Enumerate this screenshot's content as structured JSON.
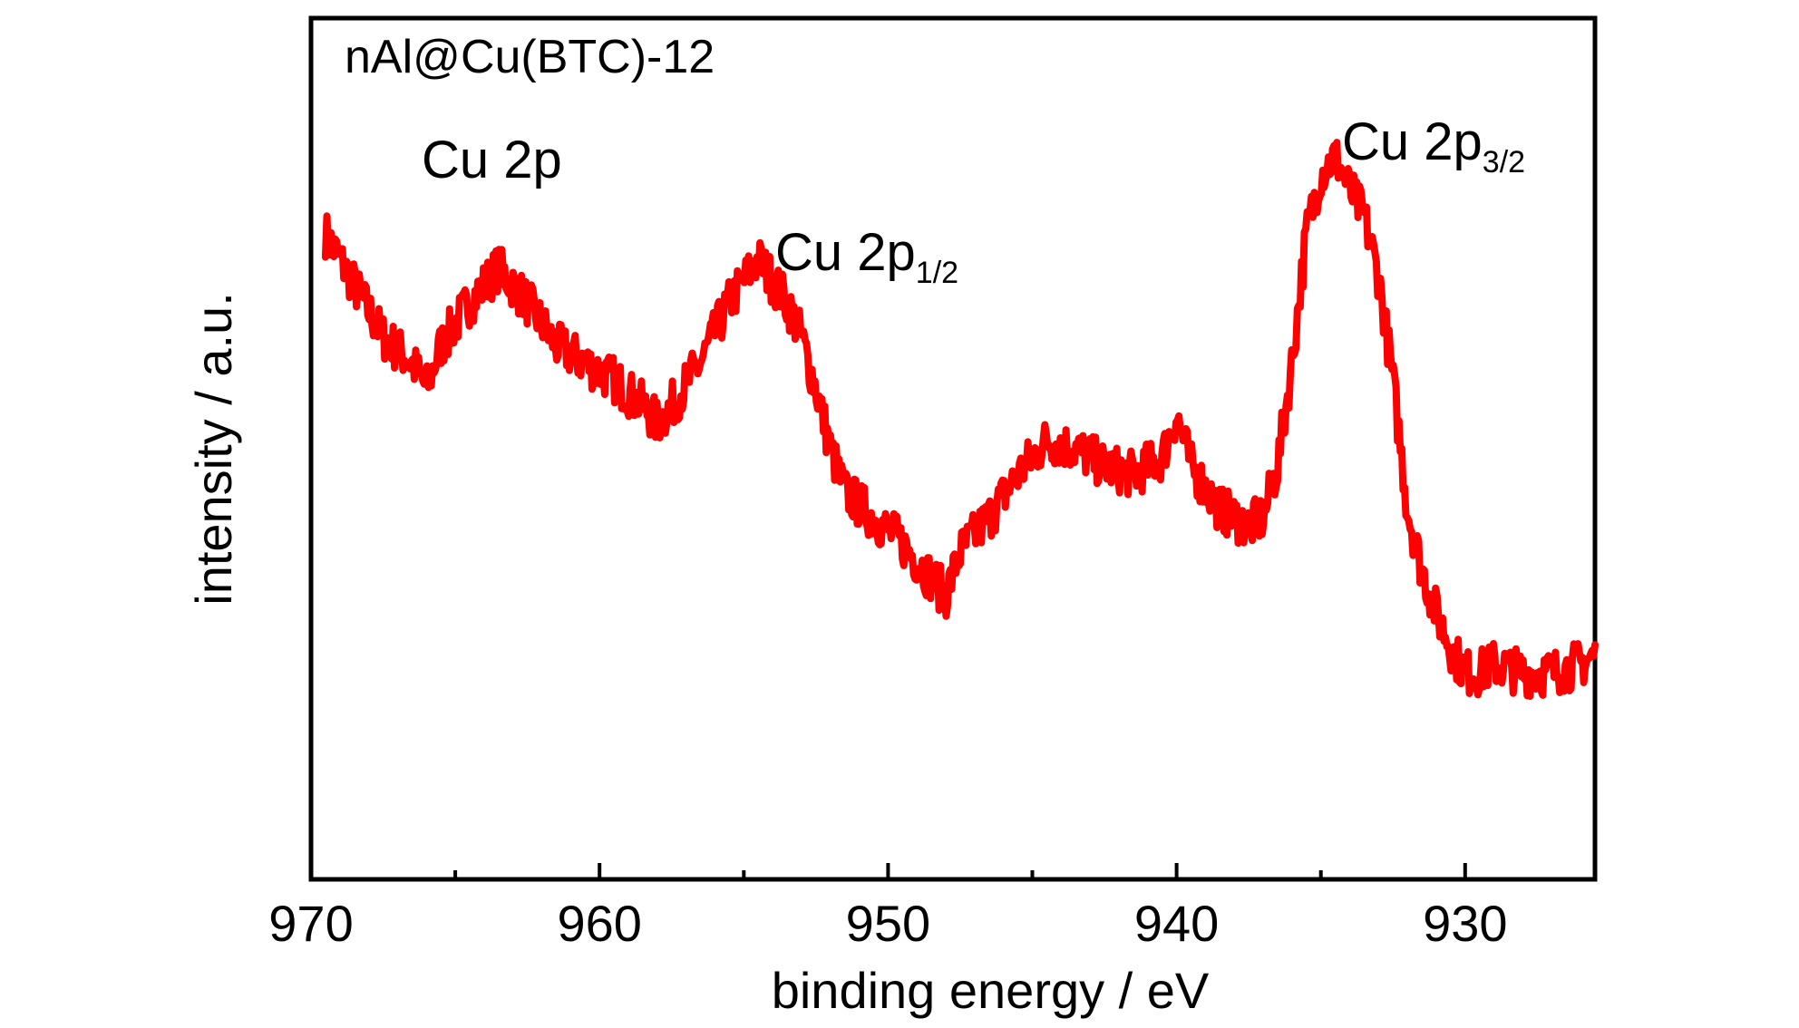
{
  "chart_data": {
    "type": "line",
    "title": "nAl@Cu(BTC)-12",
    "xlabel": "binding energy / eV",
    "ylabel": "intensity / a.u.",
    "xlim": [
      970,
      925.5
    ],
    "x_reversed": true,
    "ylim": [
      0,
      100
    ],
    "y_ticks_shown": false,
    "grid": false,
    "legend": "none",
    "x_ticks": [
      970,
      960,
      950,
      940,
      930
    ],
    "x_tick_labels": [
      "970",
      "960",
      "950",
      "940",
      "930"
    ],
    "x_minor_ticks": [
      965,
      955,
      945,
      935
    ],
    "annotations": {
      "region": "Cu 2p",
      "peak_half": {
        "base": "Cu 2p",
        "sub": "1/2",
        "x": 954.5,
        "y": 74
      },
      "peak_threehalf": {
        "base": "Cu 2p",
        "sub": "3/2",
        "x": 934.6,
        "y": 84
      }
    },
    "series": [
      {
        "color": "#ff0000",
        "x": [
          969.5,
          968.5,
          967.5,
          966.5,
          966.0,
          965.5,
          964.5,
          963.5,
          962.5,
          961.5,
          960.5,
          959.5,
          958.5,
          958.0,
          957.5,
          956.5,
          955.5,
          954.5,
          953.5,
          953.0,
          952.5,
          952.0,
          951.5,
          950.5,
          949.5,
          948.5,
          948.0,
          947.5,
          946.5,
          945.5,
          944.5,
          943.5,
          942.5,
          941.5,
          940.5,
          940.0,
          939.5,
          938.5,
          937.5,
          937.0,
          936.5,
          936.0,
          935.5,
          935.0,
          934.5,
          934.0,
          933.5,
          933.0,
          932.5,
          932.0,
          931.5,
          931.0,
          930.5,
          930.0,
          929.5,
          929.0,
          928.0,
          927.0,
          926.0,
          925.5
        ],
        "y": [
          75,
          69,
          63,
          60,
          57,
          62,
          67,
          71,
          67,
          62,
          60,
          58,
          55,
          53,
          55,
          60,
          67,
          72,
          67,
          63,
          57,
          50,
          45,
          42,
          39,
          35,
          33,
          38,
          42,
          47,
          51,
          50,
          48,
          47,
          49,
          54,
          48,
          43,
          41,
          42,
          48,
          60,
          75,
          82,
          84,
          80,
          77,
          70,
          58,
          43,
          36,
          31,
          27,
          24,
          24,
          25,
          24,
          24,
          25,
          26
        ]
      }
    ]
  }
}
